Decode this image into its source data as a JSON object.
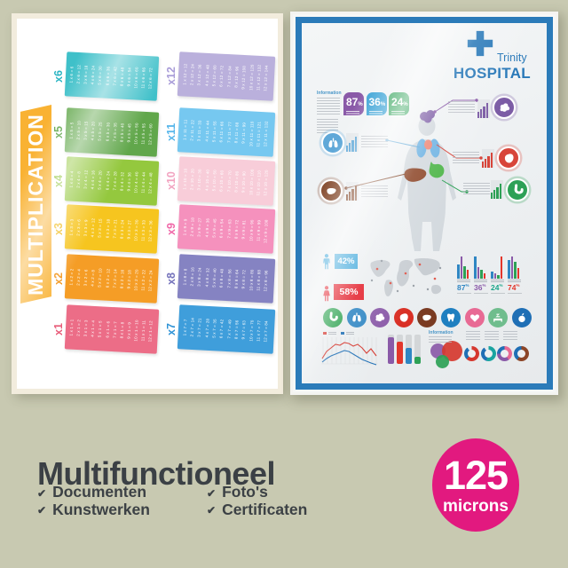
{
  "background_color": "#c8c9b1",
  "left_poster": {
    "title": "MULTIPLICATION",
    "banner_color": "#f9b233",
    "tables_left_column": [
      {
        "label": "x6",
        "color": "#3fc0c9",
        "label_color": "#2eb6c4",
        "rows": [
          "1 x 6 = 6",
          "2 x 6 = 12",
          "3 x 6 = 18",
          "4 x 6 = 24",
          "5 x 6 = 30",
          "6 x 6 = 36",
          "7 x 6 = 42",
          "8 x 6 = 48",
          "9 x 6 = 54",
          "10 x 6 = 60",
          "11 x 6 = 66",
          "12 x 6 = 72"
        ]
      },
      {
        "label": "x5",
        "color": "#61a74b",
        "label_color": "#5aa344",
        "rows": [
          "1 x 5 = 5",
          "2 x 5 = 10",
          "3 x 5 = 15",
          "4 x 5 = 20",
          "5 x 5 = 25",
          "6 x 5 = 30",
          "7 x 5 = 35",
          "8 x 5 = 40",
          "9 x 5 = 45",
          "10 x 5 = 50",
          "11 x 5 = 55",
          "12 x 5 = 60"
        ]
      },
      {
        "label": "x4",
        "color": "#94c83e",
        "label_color": "#8bc232",
        "rows": [
          "1 x 4 = 4",
          "2 x 4 = 8",
          "3 x 4 = 12",
          "4 x 4 = 16",
          "5 x 4 = 20",
          "6 x 4 = 24",
          "7 x 4 = 28",
          "8 x 4 = 32",
          "9 x 4 = 36",
          "10 x 4 = 40",
          "11 x 4 = 44",
          "12 x 4 = 48"
        ]
      },
      {
        "label": "x3",
        "color": "#f6c51f",
        "label_color": "#f0ba15",
        "rows": [
          "1 x 3 = 3",
          "2 x 3 = 6",
          "3 x 3 = 9",
          "4 x 3 = 12",
          "5 x 3 = 15",
          "6 x 3 = 18",
          "7 x 3 = 21",
          "8 x 3 = 24",
          "9 x 3 = 27",
          "10 x 3 = 30",
          "11 x 3 = 33",
          "12 x 3 = 36"
        ]
      },
      {
        "label": "x2",
        "color": "#f59d26",
        "label_color": "#f2951a",
        "rows": [
          "1 x 2 = 2",
          "2 x 2 = 4",
          "3 x 2 = 6",
          "4 x 2 = 8",
          "5 x 2 = 10",
          "6 x 2 = 12",
          "7 x 2 = 14",
          "8 x 2 = 16",
          "9 x 2 = 18",
          "10 x 2 = 20",
          "11 x 2 = 22",
          "12 x 2 = 24"
        ]
      },
      {
        "label": "x1",
        "color": "#ec6d87",
        "label_color": "#e85d7a",
        "rows": [
          "1 x 1 = 1",
          "2 x 1 = 2",
          "3 x 1 = 3",
          "4 x 1 = 4",
          "5 x 1 = 5",
          "6 x 1 = 6",
          "7 x 1 = 7",
          "8 x 1 = 8",
          "9 x 1 = 9",
          "10 x 1 = 10",
          "11 x 1 = 11",
          "12 x 1 = 12"
        ]
      }
    ],
    "tables_right_column": [
      {
        "label": "x12",
        "color": "#bab0dc",
        "label_color": "#a89cd8",
        "rows": [
          "1 x 12 = 12",
          "2 x 12 = 24",
          "3 x 12 = 36",
          "4 x 12 = 48",
          "5 x 12 = 60",
          "6 x 12 = 72",
          "7 x 12 = 84",
          "8 x 12 = 96",
          "9 x 12 = 108",
          "10 x 12 = 120",
          "11 x 12 = 132",
          "12 x 12 = 144"
        ]
      },
      {
        "label": "x11",
        "color": "#76c8f0",
        "label_color": "#55b5ea",
        "rows": [
          "1 x 11 = 11",
          "2 x 11 = 22",
          "3 x 11 = 33",
          "4 x 11 = 44",
          "5 x 11 = 55",
          "6 x 11 = 66",
          "7 x 11 = 77",
          "8 x 11 = 88",
          "9 x 11 = 99",
          "10 x 11 = 110",
          "11 x 11 = 121",
          "12 x 11 = 132"
        ]
      },
      {
        "label": "x10",
        "color": "#f8cdd9",
        "label_color": "#f2a3c0",
        "rows": [
          "1 x 10 = 10",
          "2 x 10 = 20",
          "3 x 10 = 30",
          "4 x 10 = 40",
          "5 x 10 = 50",
          "6 x 10 = 60",
          "7 x 10 = 70",
          "8 x 10 = 80",
          "9 x 10 = 90",
          "10 x 10 = 100",
          "11 x 10 = 110",
          "12 x 10 = 120"
        ]
      },
      {
        "label": "x9",
        "color": "#f591bd",
        "label_color": "#f068a8",
        "rows": [
          "1 x 9 = 9",
          "2 x 9 = 18",
          "3 x 9 = 27",
          "4 x 9 = 36",
          "5 x 9 = 45",
          "6 x 9 = 54",
          "7 x 9 = 63",
          "8 x 9 = 72",
          "9 x 9 = 81",
          "10 x 9 = 90",
          "11 x 9 = 99",
          "12 x 9 = 108"
        ]
      },
      {
        "label": "x8",
        "color": "#8583c2",
        "label_color": "#7573bb",
        "rows": [
          "1 x 8 = 8",
          "2 x 8 = 16",
          "3 x 8 = 24",
          "4 x 8 = 32",
          "5 x 8 = 40",
          "6 x 8 = 48",
          "7 x 8 = 56",
          "8 x 8 = 64",
          "9 x 8 = 72",
          "10 x 8 = 80",
          "11 x 8 = 88",
          "12 x 8 = 96"
        ]
      },
      {
        "label": "x7",
        "color": "#3f9edb",
        "label_color": "#2f93d6",
        "rows": [
          "1 x 7 = 7",
          "2 x 7 = 14",
          "3 x 7 = 21",
          "4 x 7 = 28",
          "5 x 7 = 35",
          "6 x 7 = 42",
          "7 x 7 = 49",
          "8 x 7 = 56",
          "9 x 7 = 63",
          "10 x 7 = 70",
          "11 x 7 = 77",
          "12 x 7 = 84"
        ]
      }
    ]
  },
  "hospital_poster": {
    "frame_color": "#2b7bb9",
    "logo": {
      "brand": "Trinity",
      "name": "HOSPITAL",
      "cross_color": "#2878b8",
      "text_color": "#2878b8"
    },
    "information_label": "Information",
    "bottom_information_label": "Information",
    "top_badges": [
      {
        "value": "87",
        "suffix": "%",
        "color": "#8a5aa8"
      },
      {
        "value": "36",
        "suffix": "%",
        "color": "#35a0d5"
      },
      {
        "value": "24",
        "suffix": "%",
        "color": "#2da156"
      }
    ],
    "organ_callouts": [
      {
        "organ": "brain",
        "color": "#7c5ca5"
      },
      {
        "organ": "lungs",
        "color": "#5fa8d8"
      },
      {
        "organ": "heart",
        "color": "#d8453a"
      },
      {
        "organ": "liver",
        "color": "#7d3f20"
      },
      {
        "organ": "stomach",
        "color": "#2da156"
      }
    ],
    "gender_split": [
      {
        "gender": "male",
        "value": "42%",
        "color": "#35a3d9"
      },
      {
        "gender": "female",
        "value": "58%",
        "color": "#e31f2b"
      }
    ],
    "bar_series_colors": [
      "#2f86c3",
      "#8a5aa8",
      "#2da156",
      "#e3362b"
    ],
    "stat_groups": [
      {
        "label": "87",
        "suffix": "%",
        "label_color": "#2f86c3",
        "bars": [
          62,
          95,
          55,
          38
        ]
      },
      {
        "label": "36",
        "suffix": "%",
        "label_color": "#8a5aa8",
        "bars": [
          95,
          50,
          38,
          22
        ]
      },
      {
        "label": "24",
        "suffix": "%",
        "label_color": "#19a689",
        "bars": [
          32,
          24,
          14,
          95
        ]
      },
      {
        "label": "74",
        "suffix": "%",
        "label_color": "#e3362b",
        "bars": [
          82,
          95,
          72,
          48
        ]
      }
    ],
    "organ_icons": [
      {
        "name": "stomach",
        "color": "#2fa352"
      },
      {
        "name": "lungs",
        "color": "#2f86c3"
      },
      {
        "name": "brain",
        "color": "#8a5aa8"
      },
      {
        "name": "heart-organ",
        "color": "#d93025"
      },
      {
        "name": "liver",
        "color": "#7a3b22"
      },
      {
        "name": "tooth",
        "color": "#1f7fc0"
      },
      {
        "name": "heart",
        "color": "#e86a94"
      },
      {
        "name": "sleep",
        "color": "#6fbd8d"
      },
      {
        "name": "apple",
        "color": "#1f6fb5"
      }
    ],
    "donuts": [
      {
        "segments": [
          {
            "color": "#d5382f",
            "pct": 62
          },
          {
            "color": "#1f6fb5",
            "pct": 28
          },
          {
            "color": "#e8eaec",
            "pct": 10
          }
        ]
      },
      {
        "segments": [
          {
            "color": "#1aa4a0",
            "pct": 55
          },
          {
            "color": "#1f6fb5",
            "pct": 35
          },
          {
            "color": "#e8eaec",
            "pct": 10
          }
        ]
      },
      {
        "segments": [
          {
            "color": "#e86a94",
            "pct": 40
          },
          {
            "color": "#8a5aa8",
            "pct": 35
          },
          {
            "color": "#1f6fb5",
            "pct": 25
          }
        ]
      },
      {
        "segments": [
          {
            "color": "#8c4527",
            "pct": 60
          },
          {
            "color": "#1f6fb5",
            "pct": 40
          }
        ]
      }
    ],
    "bubbles": [
      {
        "color": "#8a5aa8"
      },
      {
        "color": "#d5382f"
      },
      {
        "color": "#2da156"
      }
    ],
    "line_chart_series_colors": [
      "#d5382f",
      "#1f6fb5"
    ]
  },
  "caption": {
    "title": "Multifunctioneel",
    "checkmark": "✔",
    "items": [
      "Documenten",
      "Kunstwerken",
      "Foto's",
      "Certificaten"
    ]
  },
  "thickness_badge": {
    "value": "125",
    "unit": "microns",
    "color": "#e2197f"
  }
}
